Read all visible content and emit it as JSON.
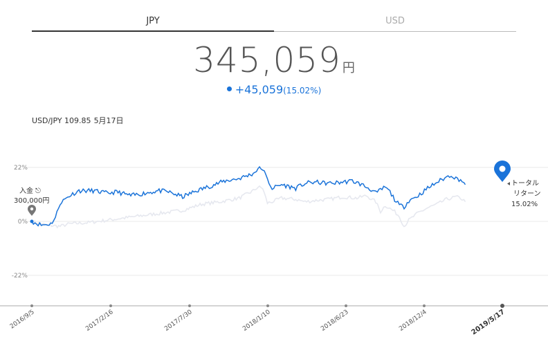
{
  "tabs": {
    "jpy": "JPY",
    "usd": "USD"
  },
  "amount": {
    "value": "345,059",
    "unit": "円"
  },
  "change": {
    "value": "+45,059",
    "percent": "(15.02%)"
  },
  "rate": {
    "pair": "USD/JPY 109.85",
    "date": "5月17日"
  },
  "deposit": {
    "label": "入金",
    "amount": "300,000円"
  },
  "total_return": {
    "label1": "トータル",
    "label2": "リターン",
    "value": "15.02%"
  },
  "colors": {
    "accent": "#1a73d9",
    "benchmark": "#e6e8ef"
  },
  "chart_data": {
    "type": "line",
    "ylim": [
      -27,
      27
    ],
    "y_ticks": [
      "22%",
      "0%",
      "-22%"
    ],
    "x_ticks": [
      "2016/9/5",
      "2017/2/16",
      "2017/7/30",
      "2018/1/10",
      "2018/6/23",
      "2018/12/4",
      "2019/5/17"
    ],
    "series": [
      {
        "values": [
          [
            0,
            0
          ],
          [
            0.02,
            -1.5
          ],
          [
            0.04,
            -1.0
          ],
          [
            0.05,
            1.5
          ],
          [
            0.06,
            7.5
          ],
          [
            0.08,
            10.5
          ],
          [
            0.1,
            12.5
          ],
          [
            0.13,
            12.5
          ],
          [
            0.16,
            11.5
          ],
          [
            0.18,
            12.0
          ],
          [
            0.21,
            10.5
          ],
          [
            0.24,
            11.5
          ],
          [
            0.27,
            12.5
          ],
          [
            0.29,
            12.0
          ],
          [
            0.32,
            10.0
          ],
          [
            0.35,
            12.5
          ],
          [
            0.38,
            14.5
          ],
          [
            0.41,
            16.5
          ],
          [
            0.44,
            17.5
          ],
          [
            0.47,
            19.5
          ],
          [
            0.48,
            21.5
          ],
          [
            0.49,
            21.5
          ],
          [
            0.5,
            17.0
          ],
          [
            0.51,
            13.5
          ],
          [
            0.53,
            15.0
          ],
          [
            0.56,
            13.5
          ],
          [
            0.58,
            15.5
          ],
          [
            0.6,
            16.0
          ],
          [
            0.63,
            15.5
          ],
          [
            0.65,
            15.8
          ],
          [
            0.68,
            16.5
          ],
          [
            0.7,
            15.0
          ],
          [
            0.72,
            13.0
          ],
          [
            0.73,
            11.5
          ],
          [
            0.75,
            14.0
          ],
          [
            0.76,
            12.0
          ],
          [
            0.77,
            9.0
          ],
          [
            0.78,
            6.5
          ],
          [
            0.79,
            6.0
          ],
          [
            0.8,
            8.5
          ],
          [
            0.82,
            10.5
          ],
          [
            0.84,
            13.5
          ],
          [
            0.86,
            16.0
          ],
          [
            0.88,
            18.0
          ],
          [
            0.89,
            19.0
          ],
          [
            0.9,
            17.5
          ],
          [
            0.91,
            17.0
          ],
          [
            0.92,
            15.0
          ]
        ]
      },
      {
        "values": [
          [
            0,
            0
          ],
          [
            0.03,
            -1.5
          ],
          [
            0.06,
            -2.0
          ],
          [
            0.08,
            -1.0
          ],
          [
            0.12,
            -0.5
          ],
          [
            0.16,
            0.5
          ],
          [
            0.2,
            1.5
          ],
          [
            0.24,
            2.5
          ],
          [
            0.28,
            3.5
          ],
          [
            0.32,
            4.5
          ],
          [
            0.36,
            7.0
          ],
          [
            0.4,
            8.0
          ],
          [
            0.44,
            9.5
          ],
          [
            0.47,
            12.5
          ],
          [
            0.48,
            14.0
          ],
          [
            0.49,
            13.5
          ],
          [
            0.5,
            7.5
          ],
          [
            0.51,
            8.0
          ],
          [
            0.53,
            9.5
          ],
          [
            0.56,
            9.0
          ],
          [
            0.58,
            8.0
          ],
          [
            0.6,
            8.5
          ],
          [
            0.63,
            9.0
          ],
          [
            0.66,
            10.0
          ],
          [
            0.69,
            9.5
          ],
          [
            0.71,
            10.5
          ],
          [
            0.73,
            8.0
          ],
          [
            0.74,
            4.0
          ],
          [
            0.75,
            6.5
          ],
          [
            0.77,
            4.0
          ],
          [
            0.78,
            2.0
          ],
          [
            0.79,
            -2.0
          ],
          [
            0.8,
            0.5
          ],
          [
            0.82,
            3.5
          ],
          [
            0.84,
            5.5
          ],
          [
            0.86,
            7.0
          ],
          [
            0.88,
            9.0
          ],
          [
            0.9,
            10.0
          ],
          [
            0.91,
            9.5
          ],
          [
            0.92,
            8.0
          ]
        ]
      }
    ]
  }
}
